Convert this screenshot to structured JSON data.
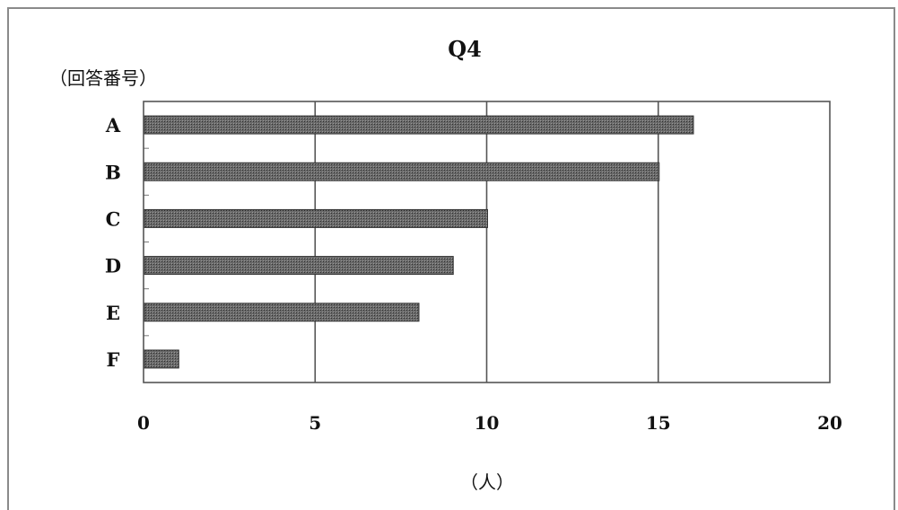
{
  "chart_data": {
    "type": "bar",
    "orientation": "horizontal",
    "title": "Q4",
    "ylabel": "（回答番号）",
    "xlabel": "（人）",
    "categories": [
      "A",
      "B",
      "C",
      "D",
      "E",
      "F"
    ],
    "values": [
      16,
      15,
      10,
      9,
      8,
      1
    ],
    "xlim": [
      0,
      20
    ],
    "xticks": [
      0,
      5,
      10,
      15,
      20
    ],
    "grid": true,
    "bar_color": "#555555",
    "legend": "none"
  }
}
